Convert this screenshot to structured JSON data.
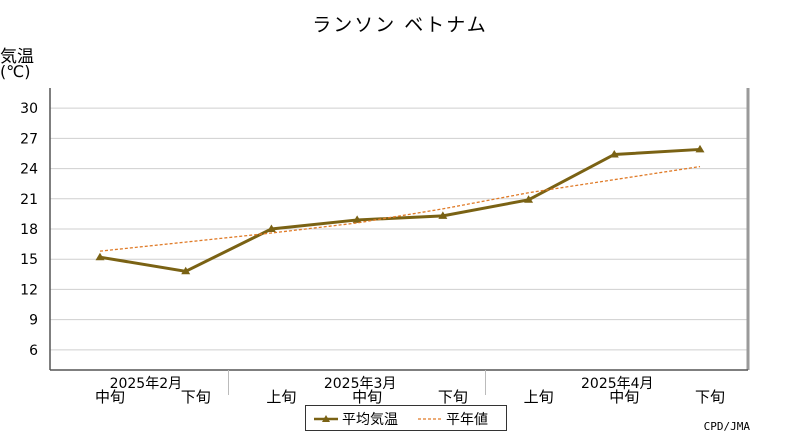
{
  "header": {
    "title": "ランソン ベトナム",
    "y_unit_line1": "気温",
    "y_unit_line2": "(℃)",
    "credit": "CPD/JMA"
  },
  "legend": {
    "items": [
      {
        "label": "平均気温",
        "style": "solid-triangle",
        "color": "#7a6214"
      },
      {
        "label": "平年値",
        "style": "dotted",
        "color": "#e07b28"
      }
    ]
  },
  "chart_data": {
    "type": "line",
    "title": "ランソン ベトナム",
    "ylabel": "気温(℃)",
    "ylim": [
      4,
      32
    ],
    "yticks": [
      6,
      9,
      12,
      15,
      18,
      21,
      24,
      27,
      30
    ],
    "grid": true,
    "legend_position": "bottom-center",
    "x": [
      "2025年2月 中旬",
      "2025年2月 下旬",
      "2025年3月 上旬",
      "2025年3月 中旬",
      "2025年3月 下旬",
      "2025年4月 上旬",
      "2025年4月 中旬",
      "2025年4月 下旬"
    ],
    "period_labels": [
      "中旬",
      "下旬",
      "上旬",
      "中旬",
      "下旬",
      "上旬",
      "中旬",
      "下旬"
    ],
    "month_labels": [
      {
        "label": "2025年2月",
        "start": 0,
        "end": 1
      },
      {
        "label": "2025年3月",
        "start": 2,
        "end": 4
      },
      {
        "label": "2025年4月",
        "start": 5,
        "end": 7
      }
    ],
    "series": [
      {
        "name": "平均気温",
        "values": [
          15.2,
          13.8,
          18.0,
          18.9,
          19.3,
          20.9,
          25.4,
          25.9
        ],
        "color": "#7a6214",
        "marker": "triangle"
      },
      {
        "name": "平年値",
        "values": [
          15.8,
          16.7,
          17.6,
          18.6,
          20.0,
          21.6,
          22.9,
          24.2
        ],
        "color": "#e07b28",
        "dashed": true
      }
    ]
  }
}
